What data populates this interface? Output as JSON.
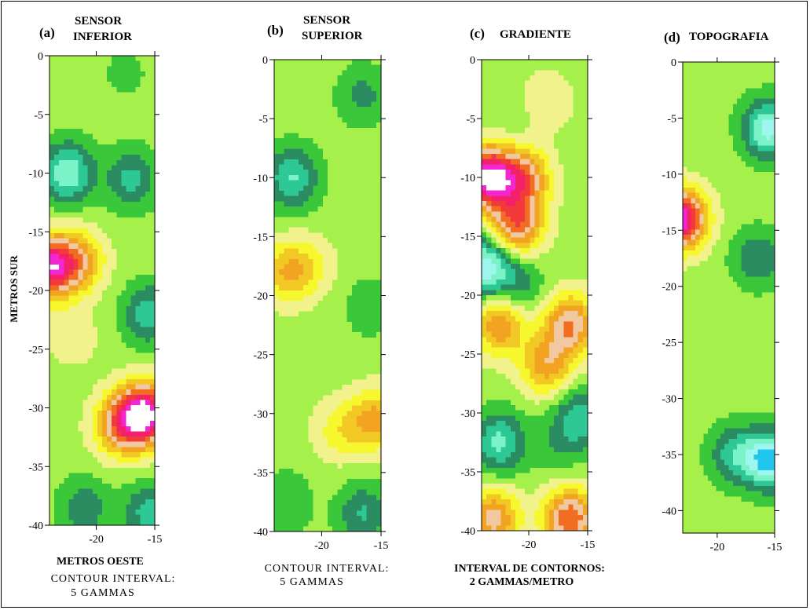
{
  "figure": {
    "ylabel": "METROS SUR",
    "xlabel": "METROS OESTE"
  },
  "panels": [
    {
      "id": "a",
      "letter": "(a)",
      "title_lines": [
        "SENSOR",
        "INFERIOR"
      ],
      "caption_lines": [
        "CONTOUR INTERVAL:",
        "5 GAMMAS"
      ],
      "xlim": [
        -24,
        -15
      ],
      "ylim": [
        -40,
        0
      ],
      "xticks": [
        "-20",
        "-15"
      ],
      "yticks": [
        "0",
        "-5",
        "-10",
        "-15",
        "-20",
        "-25",
        "-30",
        "-35",
        "-40"
      ]
    },
    {
      "id": "b",
      "letter": "(b)",
      "title_lines": [
        "SENSOR",
        "SUPERIOR"
      ],
      "caption_lines": [
        "CONTOUR INTERVAL:",
        "5 GAMMAS"
      ],
      "xlim": [
        -24,
        -15
      ],
      "ylim": [
        -40,
        0
      ],
      "xticks": [
        "-20",
        "-15"
      ],
      "yticks": [
        "0",
        "-5",
        "-10",
        "-15",
        "-20",
        "-25",
        "-30",
        "-35",
        "-40"
      ]
    },
    {
      "id": "c",
      "letter": "(c)",
      "title_lines": [
        "GRADIENTE"
      ],
      "caption_lines": [
        "INTERVAL DE CONTORNOS:",
        "2 GAMMAS/METRO"
      ],
      "xlim": [
        -24,
        -15
      ],
      "ylim": [
        -40,
        0
      ],
      "xticks": [
        "-20",
        "-15"
      ],
      "yticks": [
        "0",
        "-5",
        "-10",
        "-15",
        "-20",
        "-25",
        "-30",
        "-35",
        "-40"
      ]
    },
    {
      "id": "d",
      "letter": "(d)",
      "title_lines": [
        "TOPOGRAFIA"
      ],
      "caption_lines": [],
      "xlim": [
        -23,
        -15
      ],
      "ylim": [
        -42,
        0
      ],
      "xticks": [
        "-20",
        "-15"
      ],
      "yticks": [
        "0",
        "-5",
        "-10",
        "-15",
        "-20",
        "-25",
        "-30",
        "-35",
        "-40"
      ]
    }
  ],
  "chart_data": [
    {
      "type": "heatmap",
      "title": "SENSOR INFERIOR",
      "xlabel": "METROS OESTE",
      "ylabel": "METROS SUR",
      "xlim": [
        -24,
        -15
      ],
      "ylim": [
        -40,
        0
      ],
      "contour_interval": "5 GAMMAS",
      "levels": 14,
      "features": [
        {
          "x": -22.5,
          "y": -10,
          "level": -4.5
        },
        {
          "x": -17,
          "y": -10.5,
          "level": -2.8
        },
        {
          "x": -17.5,
          "y": -1.5,
          "level": -0.8
        },
        {
          "x": -24,
          "y": -18,
          "level": 8.3
        },
        {
          "x": -21.5,
          "y": -17.5,
          "level": 4
        },
        {
          "x": -15.5,
          "y": -22,
          "level": -3.2
        },
        {
          "x": -15.8,
          "y": -30.5,
          "level": 9.5
        },
        {
          "x": -18,
          "y": -31.5,
          "level": 5
        },
        {
          "x": -22,
          "y": -24,
          "level": 1.2
        },
        {
          "x": -21,
          "y": -38.5,
          "level": -2.2
        },
        {
          "x": -15.5,
          "y": -39,
          "level": -3
        }
      ]
    },
    {
      "type": "heatmap",
      "title": "SENSOR SUPERIOR",
      "xlabel": "METROS OESTE",
      "ylabel": "METROS SUR",
      "xlim": [
        -24,
        -15
      ],
      "ylim": [
        -40,
        0
      ],
      "contour_interval": "5 GAMMAS",
      "levels": 14,
      "features": [
        {
          "x": -22.5,
          "y": -10,
          "level": -3.6
        },
        {
          "x": -16.5,
          "y": -3,
          "level": -1.8
        },
        {
          "x": -23,
          "y": -18,
          "level": 3.2
        },
        {
          "x": -21,
          "y": -17.5,
          "level": 1.5
        },
        {
          "x": -16,
          "y": -21,
          "level": -1.2
        },
        {
          "x": -15.5,
          "y": -30.5,
          "level": 3.8
        },
        {
          "x": -18.5,
          "y": -31.5,
          "level": 2
        },
        {
          "x": -16.5,
          "y": -38.5,
          "level": -2.6
        },
        {
          "x": -23,
          "y": -37.5,
          "level": -1.5
        }
      ]
    },
    {
      "type": "heatmap",
      "title": "GRADIENTE",
      "xlabel": "METROS OESTE",
      "ylabel": "METROS SUR",
      "xlim": [
        -24,
        -15
      ],
      "ylim": [
        -40,
        0
      ],
      "contour_interval": "2 GAMMAS/METRO",
      "levels": 14,
      "features": [
        {
          "x": -23.5,
          "y": -10,
          "level": 9.5
        },
        {
          "x": -20.5,
          "y": -10,
          "level": 5.5
        },
        {
          "x": -21,
          "y": -14,
          "level": 6
        },
        {
          "x": -23.8,
          "y": -17.5,
          "level": -5.2
        },
        {
          "x": -21,
          "y": -19,
          "level": -2.2
        },
        {
          "x": -22.5,
          "y": -22.5,
          "level": 4.5
        },
        {
          "x": -16.5,
          "y": -22.5,
          "level": 5.5
        },
        {
          "x": -18.5,
          "y": -26,
          "level": 4
        },
        {
          "x": -22.5,
          "y": -32.5,
          "level": -3.8
        },
        {
          "x": -15.8,
          "y": -30.5,
          "level": -3.2
        },
        {
          "x": -17.5,
          "y": -33,
          "level": -1
        },
        {
          "x": -21,
          "y": -6,
          "level": -0.5
        },
        {
          "x": -18.5,
          "y": -3.5,
          "level": 1.5
        },
        {
          "x": -16.5,
          "y": -39,
          "level": 6.5
        },
        {
          "x": -23,
          "y": -39,
          "level": 5
        }
      ]
    },
    {
      "type": "heatmap",
      "title": "TOPOGRAFIA",
      "xlabel": "METROS OESTE",
      "ylabel": "METROS SUR",
      "xlim": [
        -23,
        -15
      ],
      "ylim": [
        -42,
        0
      ],
      "levels": 14,
      "features": [
        {
          "x": -23.2,
          "y": -14,
          "level": 9.5
        },
        {
          "x": -15.5,
          "y": -6,
          "level": -5
        },
        {
          "x": -16.5,
          "y": -17.5,
          "level": -2.5
        },
        {
          "x": -15.3,
          "y": -35.5,
          "level": -6
        },
        {
          "x": -18.5,
          "y": -35,
          "level": -3
        },
        {
          "x": -21,
          "y": -24,
          "level": 0.5
        },
        {
          "x": -19.5,
          "y": -3,
          "level": -0.2
        }
      ]
    }
  ],
  "style": {
    "palette": [
      "#000000",
      "#5b3d96",
      "#3a19c8",
      "#6a6af2",
      "#21c6ef",
      "#9ef7ef",
      "#7bf2c8",
      "#2ec896",
      "#2a8c60",
      "#3ac83a",
      "#a6f04c",
      "#f2f28c",
      "#f7f72e",
      "#f2c824",
      "#f2a321",
      "#f2c8a0",
      "#f26d21",
      "#f23a3a",
      "#f2216a",
      "#f226d2",
      "#ffffff"
    ],
    "background": "#ffffff",
    "frame": "#000000"
  }
}
